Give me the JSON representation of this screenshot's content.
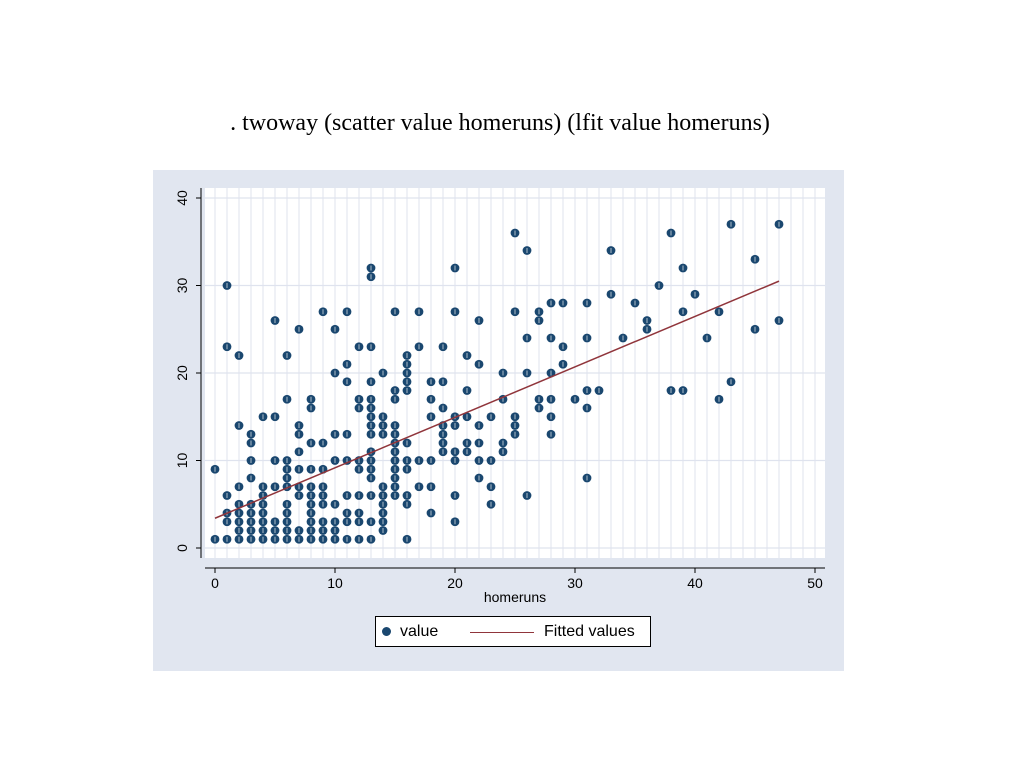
{
  "page": {
    "title": ". twoway (scatter value homeruns) (lfit value homeruns)"
  },
  "colors": {
    "graph_region_bg": "#e1e6f0",
    "plot_bg": "#ffffff",
    "grid": "#dfe3ee",
    "axis": "#000000",
    "marker": "#1a476f",
    "fit_line": "#90353b"
  },
  "chart_data": {
    "type": "scatter",
    "title": "",
    "xlabel": "homeruns",
    "ylabel": "",
    "xlim": [
      0,
      50
    ],
    "ylim": [
      0,
      40
    ],
    "x_ticks": [
      0,
      10,
      20,
      30,
      40,
      50
    ],
    "y_ticks": [
      0,
      10,
      20,
      30,
      40
    ],
    "x_minor_grid_step": 1,
    "grid": true,
    "legend": {
      "position": "bottom",
      "entries": [
        "value",
        "Fitted values"
      ]
    },
    "series": [
      {
        "name": "value",
        "kind": "scatter",
        "points": [
          [
            0,
            1
          ],
          [
            0,
            9
          ],
          [
            1,
            1
          ],
          [
            1,
            3
          ],
          [
            1,
            4
          ],
          [
            1,
            6
          ],
          [
            1,
            23
          ],
          [
            1,
            30
          ],
          [
            2,
            1
          ],
          [
            2,
            2
          ],
          [
            2,
            3
          ],
          [
            2,
            4
          ],
          [
            2,
            5
          ],
          [
            2,
            7
          ],
          [
            2,
            14
          ],
          [
            2,
            22
          ],
          [
            3,
            1
          ],
          [
            3,
            2
          ],
          [
            3,
            3
          ],
          [
            3,
            4
          ],
          [
            3,
            5
          ],
          [
            3,
            8
          ],
          [
            3,
            10
          ],
          [
            3,
            12
          ],
          [
            3,
            13
          ],
          [
            4,
            1
          ],
          [
            4,
            2
          ],
          [
            4,
            3
          ],
          [
            4,
            4
          ],
          [
            4,
            5
          ],
          [
            4,
            6
          ],
          [
            4,
            7
          ],
          [
            4,
            15
          ],
          [
            5,
            1
          ],
          [
            5,
            2
          ],
          [
            5,
            3
          ],
          [
            5,
            7
          ],
          [
            5,
            10
          ],
          [
            5,
            15
          ],
          [
            5,
            26
          ],
          [
            6,
            1
          ],
          [
            6,
            2
          ],
          [
            6,
            3
          ],
          [
            6,
            4
          ],
          [
            6,
            5
          ],
          [
            6,
            7
          ],
          [
            6,
            8
          ],
          [
            6,
            9
          ],
          [
            6,
            10
          ],
          [
            6,
            17
          ],
          [
            6,
            22
          ],
          [
            7,
            1
          ],
          [
            7,
            2
          ],
          [
            7,
            6
          ],
          [
            7,
            7
          ],
          [
            7,
            9
          ],
          [
            7,
            11
          ],
          [
            7,
            13
          ],
          [
            7,
            14
          ],
          [
            7,
            25
          ],
          [
            8,
            1
          ],
          [
            8,
            2
          ],
          [
            8,
            3
          ],
          [
            8,
            4
          ],
          [
            8,
            5
          ],
          [
            8,
            6
          ],
          [
            8,
            7
          ],
          [
            8,
            9
          ],
          [
            8,
            12
          ],
          [
            8,
            16
          ],
          [
            8,
            17
          ],
          [
            9,
            1
          ],
          [
            9,
            2
          ],
          [
            9,
            3
          ],
          [
            9,
            5
          ],
          [
            9,
            6
          ],
          [
            9,
            7
          ],
          [
            9,
            9
          ],
          [
            9,
            12
          ],
          [
            9,
            27
          ],
          [
            10,
            1
          ],
          [
            10,
            2
          ],
          [
            10,
            3
          ],
          [
            10,
            5
          ],
          [
            10,
            10
          ],
          [
            10,
            13
          ],
          [
            10,
            20
          ],
          [
            10,
            25
          ],
          [
            11,
            1
          ],
          [
            11,
            3
          ],
          [
            11,
            4
          ],
          [
            11,
            6
          ],
          [
            11,
            10
          ],
          [
            11,
            13
          ],
          [
            11,
            19
          ],
          [
            11,
            21
          ],
          [
            11,
            27
          ],
          [
            12,
            1
          ],
          [
            12,
            3
          ],
          [
            12,
            4
          ],
          [
            12,
            6
          ],
          [
            12,
            9
          ],
          [
            12,
            10
          ],
          [
            12,
            16
          ],
          [
            12,
            17
          ],
          [
            12,
            23
          ],
          [
            13,
            1
          ],
          [
            13,
            3
          ],
          [
            13,
            6
          ],
          [
            13,
            8
          ],
          [
            13,
            9
          ],
          [
            13,
            10
          ],
          [
            13,
            11
          ],
          [
            13,
            13
          ],
          [
            13,
            14
          ],
          [
            13,
            15
          ],
          [
            13,
            16
          ],
          [
            13,
            17
          ],
          [
            13,
            19
          ],
          [
            13,
            23
          ],
          [
            13,
            31
          ],
          [
            13,
            32
          ],
          [
            14,
            2
          ],
          [
            14,
            3
          ],
          [
            14,
            4
          ],
          [
            14,
            5
          ],
          [
            14,
            6
          ],
          [
            14,
            7
          ],
          [
            14,
            13
          ],
          [
            14,
            14
          ],
          [
            14,
            15
          ],
          [
            14,
            20
          ],
          [
            15,
            6
          ],
          [
            15,
            7
          ],
          [
            15,
            8
          ],
          [
            15,
            9
          ],
          [
            15,
            10
          ],
          [
            15,
            11
          ],
          [
            15,
            12
          ],
          [
            15,
            13
          ],
          [
            15,
            14
          ],
          [
            15,
            17
          ],
          [
            15,
            18
          ],
          [
            15,
            27
          ],
          [
            16,
            1
          ],
          [
            16,
            5
          ],
          [
            16,
            6
          ],
          [
            16,
            9
          ],
          [
            16,
            10
          ],
          [
            16,
            12
          ],
          [
            16,
            18
          ],
          [
            16,
            19
          ],
          [
            16,
            20
          ],
          [
            16,
            21
          ],
          [
            16,
            22
          ],
          [
            17,
            7
          ],
          [
            17,
            10
          ],
          [
            17,
            23
          ],
          [
            17,
            27
          ],
          [
            18,
            4
          ],
          [
            18,
            7
          ],
          [
            18,
            10
          ],
          [
            18,
            15
          ],
          [
            18,
            17
          ],
          [
            18,
            19
          ],
          [
            19,
            11
          ],
          [
            19,
            12
          ],
          [
            19,
            13
          ],
          [
            19,
            14
          ],
          [
            19,
            16
          ],
          [
            19,
            19
          ],
          [
            19,
            23
          ],
          [
            20,
            3
          ],
          [
            20,
            6
          ],
          [
            20,
            10
          ],
          [
            20,
            11
          ],
          [
            20,
            14
          ],
          [
            20,
            15
          ],
          [
            20,
            27
          ],
          [
            20,
            32
          ],
          [
            21,
            11
          ],
          [
            21,
            12
          ],
          [
            21,
            15
          ],
          [
            21,
            18
          ],
          [
            21,
            22
          ],
          [
            22,
            8
          ],
          [
            22,
            10
          ],
          [
            22,
            12
          ],
          [
            22,
            14
          ],
          [
            22,
            21
          ],
          [
            22,
            26
          ],
          [
            23,
            5
          ],
          [
            23,
            7
          ],
          [
            23,
            10
          ],
          [
            23,
            15
          ],
          [
            24,
            11
          ],
          [
            24,
            12
          ],
          [
            24,
            17
          ],
          [
            24,
            20
          ],
          [
            25,
            13
          ],
          [
            25,
            14
          ],
          [
            25,
            15
          ],
          [
            25,
            27
          ],
          [
            25,
            36
          ],
          [
            26,
            6
          ],
          [
            26,
            20
          ],
          [
            26,
            24
          ],
          [
            26,
            34
          ],
          [
            27,
            16
          ],
          [
            27,
            17
          ],
          [
            27,
            26
          ],
          [
            27,
            27
          ],
          [
            28,
            13
          ],
          [
            28,
            15
          ],
          [
            28,
            17
          ],
          [
            28,
            20
          ],
          [
            28,
            24
          ],
          [
            28,
            28
          ],
          [
            29,
            21
          ],
          [
            29,
            23
          ],
          [
            29,
            28
          ],
          [
            30,
            17
          ],
          [
            31,
            8
          ],
          [
            31,
            16
          ],
          [
            31,
            18
          ],
          [
            31,
            24
          ],
          [
            31,
            28
          ],
          [
            32,
            18
          ],
          [
            33,
            29
          ],
          [
            33,
            34
          ],
          [
            34,
            24
          ],
          [
            35,
            28
          ],
          [
            36,
            25
          ],
          [
            36,
            26
          ],
          [
            37,
            30
          ],
          [
            38,
            18
          ],
          [
            38,
            36
          ],
          [
            39,
            18
          ],
          [
            39,
            27
          ],
          [
            39,
            32
          ],
          [
            40,
            29
          ],
          [
            41,
            24
          ],
          [
            42,
            17
          ],
          [
            42,
            27
          ],
          [
            43,
            19
          ],
          [
            43,
            37
          ],
          [
            45,
            25
          ],
          [
            45,
            33
          ],
          [
            47,
            26
          ],
          [
            47,
            37
          ]
        ]
      },
      {
        "name": "Fitted values",
        "kind": "line",
        "points": [
          [
            0,
            3.4
          ],
          [
            47,
            30.5
          ]
        ]
      }
    ]
  }
}
